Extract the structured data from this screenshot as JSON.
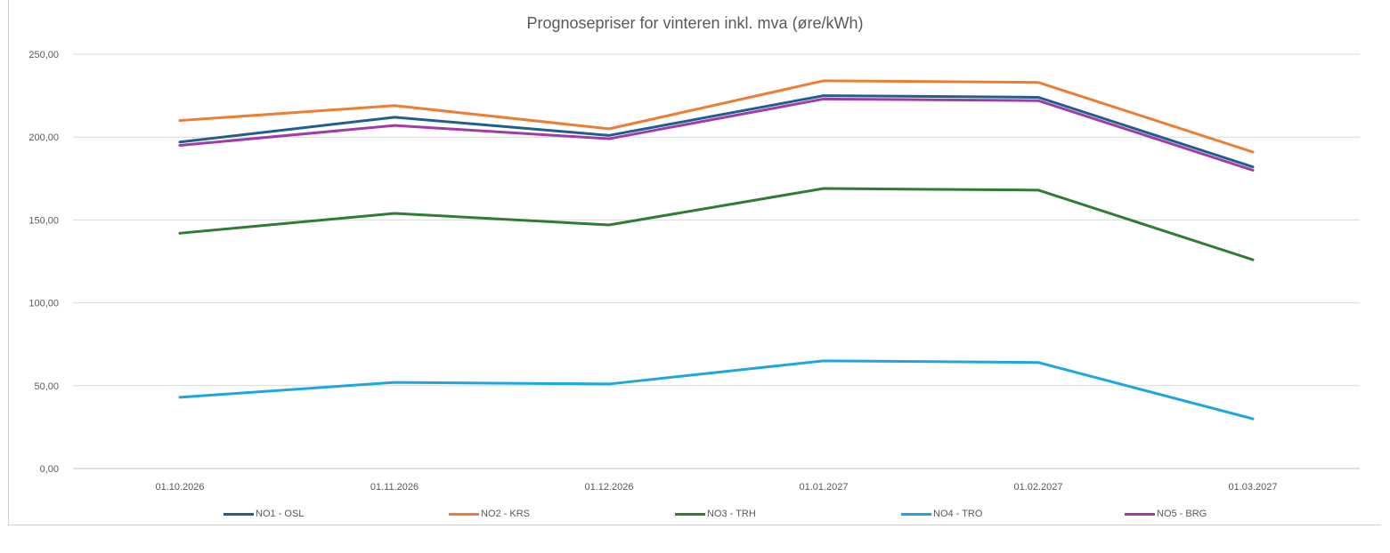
{
  "chart_data": {
    "type": "line",
    "title": "Prognosepriser for vinteren inkl. mva (øre/kWh)",
    "xlabel": "",
    "ylabel": "",
    "categories": [
      "01.10.2026",
      "01.11.2026",
      "01.12.2026",
      "01.01.2027",
      "01.02.2027",
      "01.03.2027"
    ],
    "yticks": [
      "0,00",
      "50,00",
      "100,00",
      "150,00",
      "200,00",
      "250,00"
    ],
    "ylim": [
      0,
      250
    ],
    "grid": true,
    "legend_position": "bottom",
    "series": [
      {
        "name": "NO1 - OSL",
        "color": "#1f5f8b",
        "values": [
          197,
          212,
          201,
          225,
          224,
          182
        ]
      },
      {
        "name": "NO2 - KRS",
        "color": "#ed7d31",
        "values": [
          210,
          219,
          205,
          234,
          233,
          191
        ]
      },
      {
        "name": "NO3 - TRH",
        "color": "#2e7d32",
        "values": [
          142,
          154,
          147,
          169,
          168,
          126
        ]
      },
      {
        "name": "NO4 - TRO",
        "color": "#1ea6e0",
        "values": [
          43,
          52,
          51,
          65,
          64,
          30
        ]
      },
      {
        "name": "NO5 - BRG",
        "color": "#a23ba8",
        "values": [
          195,
          207,
          199,
          223,
          222,
          180
        ]
      }
    ]
  }
}
